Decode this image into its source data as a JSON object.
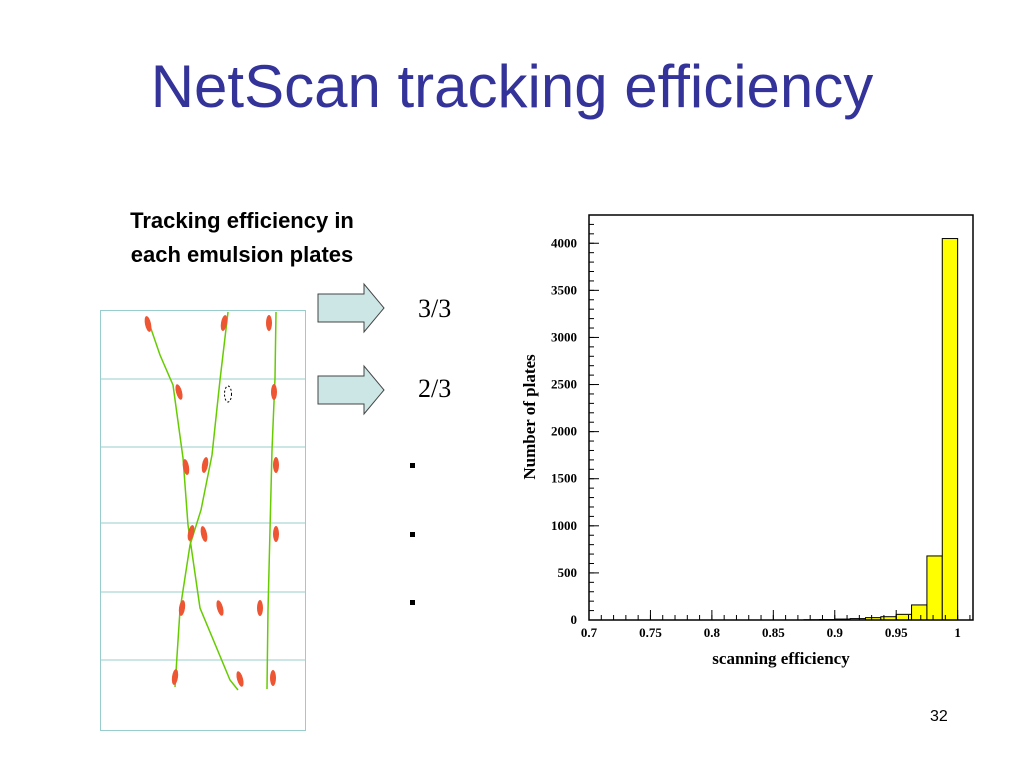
{
  "slide": {
    "title": "NetScan tracking efficiency",
    "caption_line1": "Tracking efficiency in",
    "caption_line2": "each emulsion plates",
    "slide_number": "32"
  },
  "diagram": {
    "labels": [
      "3/3",
      "2/3"
    ],
    "continuation": "..."
  },
  "colors": {
    "title": "#333399",
    "hist_fill": "#ffff00",
    "track_line": "#66cc00",
    "segment": "#ee5533",
    "arrow_fill": "#cce6e6",
    "plate_line": "#99cccc"
  },
  "chart_data": {
    "type": "bar",
    "subtype": "histogram",
    "xlabel": "scanning efficiency",
    "ylabel": "Number of plates",
    "xlim": [
      0.7,
      1.0125
    ],
    "ylim": [
      0,
      4300
    ],
    "x_ticks": [
      "0.7",
      "0.75",
      "0.8",
      "0.85",
      "0.9",
      "0.95",
      "1"
    ],
    "y_ticks": [
      "0",
      "500",
      "1000",
      "1500",
      "2000",
      "2500",
      "3000",
      "3500",
      "4000"
    ],
    "bin_width": 0.0125,
    "bin_lefts": [
      0.875,
      0.8875,
      0.9,
      0.9125,
      0.925,
      0.9375,
      0.95,
      0.9625,
      0.975,
      0.9875,
      1.0
    ],
    "values": [
      3,
      5,
      10,
      15,
      25,
      35,
      60,
      160,
      680,
      4050,
      0
    ],
    "grid": false,
    "legend": "none"
  }
}
